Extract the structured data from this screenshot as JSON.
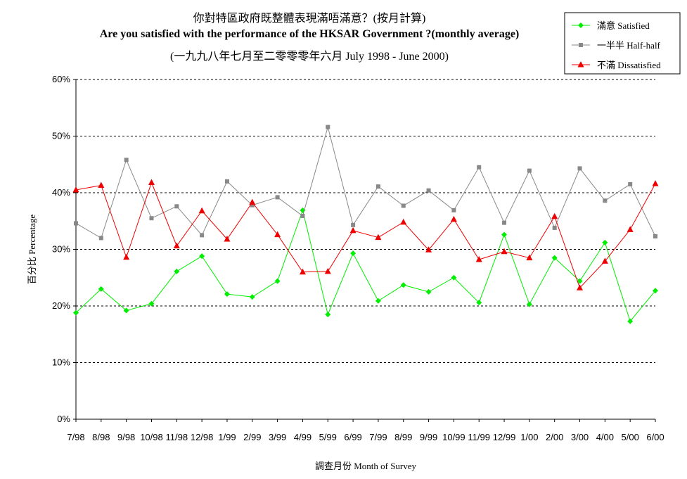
{
  "title": {
    "line1": "你對特區政府既整體表現滿唔滿意？(按月計算)",
    "line2": "Are you satisfied with the performance of the HKSAR Government ?(monthly average)",
    "line3": "(一九九八年七月至二零零零年六月 July 1998 - June 2000)"
  },
  "chart_data": {
    "type": "line",
    "title": "你對特區政府既整體表現滿唔滿意？(按月計算) Are you satisfied with the performance of the HKSAR Government ?(monthly average) (一九九八年七月至二零零零年六月 July 1998 - June 2000)",
    "xlabel": "調查月份 Month of Survey",
    "ylabel": "百分比 Percentage",
    "ylim": [
      0,
      60
    ],
    "yticks": [
      "0%",
      "10%",
      "20%",
      "30%",
      "40%",
      "50%",
      "60%"
    ],
    "grid": true,
    "legend_position": "top-right",
    "categories": [
      "7/98",
      "8/98",
      "9/98",
      "10/98",
      "11/98",
      "12/98",
      "1/99",
      "2/99",
      "3/99",
      "4/99",
      "5/99",
      "6/99",
      "7/99",
      "8/99",
      "9/99",
      "10/99",
      "11/99",
      "12/99",
      "1/00",
      "2/00",
      "3/00",
      "4/00",
      "5/00",
      "6/00"
    ],
    "series": [
      {
        "name": "滿意 Satisfied",
        "color": "#00ee00",
        "marker": "diamond",
        "values": [
          18.8,
          23.0,
          19.2,
          20.4,
          26.1,
          28.8,
          22.1,
          21.6,
          24.4,
          36.9,
          18.5,
          29.3,
          20.9,
          23.7,
          22.5,
          25.0,
          20.6,
          32.6,
          20.3,
          28.5,
          24.4,
          31.2,
          17.3,
          22.7
        ]
      },
      {
        "name": "一半半 Half-half",
        "color": "#888888",
        "marker": "square",
        "values": [
          34.6,
          32.0,
          45.8,
          35.5,
          37.6,
          32.5,
          42.0,
          37.8,
          39.2,
          35.9,
          51.6,
          34.3,
          41.1,
          37.7,
          40.4,
          36.9,
          44.5,
          34.7,
          43.9,
          33.8,
          44.3,
          38.6,
          41.5,
          32.3
        ]
      },
      {
        "name": "不滿 Dissatisfied",
        "color": "#ee0000",
        "marker": "triangle",
        "values": [
          40.5,
          41.3,
          28.6,
          41.8,
          30.6,
          36.8,
          31.8,
          38.3,
          32.6,
          26.0,
          26.1,
          33.3,
          32.1,
          34.8,
          29.9,
          35.3,
          28.2,
          29.6,
          28.5,
          35.8,
          23.2,
          27.9,
          33.5,
          41.6
        ]
      }
    ]
  }
}
